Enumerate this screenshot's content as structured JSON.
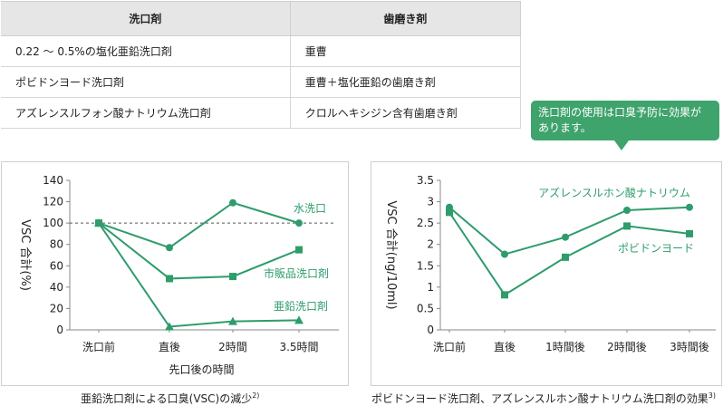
{
  "table": {
    "headers": [
      "洗口剤",
      "歯磨き剤"
    ],
    "rows": [
      [
        "0.22 ～ 0.5%の塩化亜鉛洗口剤",
        "重曹"
      ],
      [
        "ポビドンヨード洗口剤",
        "重曹＋塩化亜鉛の歯磨き剤"
      ],
      [
        "アズレンスルフォン酸ナトリウム洗口剤",
        "クロルヘキシジン含有歯磨き剤"
      ]
    ]
  },
  "callout": {
    "line1": "洗口剤の使用は口臭予防に効果が",
    "line2": "あります。"
  },
  "colors": {
    "series": "#2e9c6b",
    "callout": "#3fa36c",
    "axis": "#888888",
    "reference_line": "#555555"
  },
  "captions": {
    "left": {
      "text": "亜鉛洗口剤による口臭(VSC)の減少",
      "ref": "2)"
    },
    "right": {
      "text": "ポビドンヨード洗口剤、アズレンスルホン酸ナトリウム洗口剤の効果",
      "ref": "3)"
    }
  },
  "chart_data": [
    {
      "type": "line",
      "categories": [
        "洗口前",
        "直後",
        "2時間",
        "3.5時間"
      ],
      "xlabel": "先口後の時間",
      "ylabel": "VSC 合計(%)",
      "ylim": [
        0,
        140
      ],
      "yticks": [
        "0",
        "20",
        "40",
        "60",
        "80",
        "100",
        "120",
        "140"
      ],
      "reference_line": 100,
      "series": [
        {
          "name": "水洗口",
          "marker": "circle",
          "values": [
            100,
            77,
            119,
            100
          ]
        },
        {
          "name": "市販品洗口剤",
          "marker": "square",
          "values": [
            100,
            48,
            50,
            75
          ]
        },
        {
          "name": "亜鉛洗口剤",
          "marker": "triangle",
          "values": [
            100,
            3,
            8,
            9
          ]
        }
      ]
    },
    {
      "type": "line",
      "categories": [
        "洗口前",
        "直後",
        "1時間後",
        "2時間後",
        "3時間後"
      ],
      "ylabel": "VSC 合計(ng/10ml)",
      "ylim": [
        0,
        3.5
      ],
      "yticks": [
        "0",
        "0.5",
        "1",
        "1.5",
        "2",
        "2.5",
        "3",
        "3.5"
      ],
      "series": [
        {
          "name": "アズレンスルホン酸ナトリウム",
          "marker": "circle",
          "values": [
            2.87,
            1.77,
            2.17,
            2.8,
            2.87
          ]
        },
        {
          "name": "ポビドンヨード",
          "marker": "square",
          "values": [
            2.75,
            0.82,
            1.7,
            2.43,
            2.25
          ]
        }
      ]
    }
  ]
}
